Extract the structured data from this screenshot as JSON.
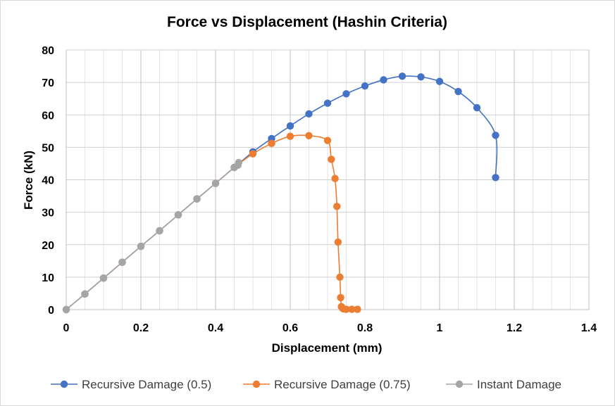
{
  "chart_data": {
    "type": "scatter",
    "title": "Force vs Displacement (Hashin Criteria)",
    "xlabel": "Displacement (mm)",
    "ylabel": "Force (kN)",
    "xlim": [
      0,
      1.4
    ],
    "ylim": [
      0,
      80
    ],
    "xticks": [
      "0",
      "0.2",
      "0.4",
      "0.6",
      "0.8",
      "1",
      "1.2",
      "1.4"
    ],
    "yticks": [
      "0",
      "10",
      "20",
      "30",
      "40",
      "50",
      "60",
      "70",
      "80"
    ],
    "grid": true,
    "legend_position": "bottom",
    "series": [
      {
        "name": "Recursive Damage (0.5)",
        "color": "#4472c4",
        "x": [
          0,
          0.05,
          0.1,
          0.15,
          0.2,
          0.25,
          0.3,
          0.35,
          0.4,
          0.45,
          0.5,
          0.55,
          0.6,
          0.65,
          0.7,
          0.75,
          0.8,
          0.85,
          0.9,
          0.95,
          1.0,
          1.05,
          1.1,
          1.15,
          1.15
        ],
        "y": [
          0,
          4.8,
          9.7,
          14.6,
          19.5,
          24.3,
          29.2,
          34.1,
          38.9,
          43.8,
          48.6,
          52.7,
          56.6,
          60.3,
          63.6,
          66.5,
          68.9,
          70.8,
          71.9,
          71.7,
          70.3,
          67.2,
          62.2,
          53.7,
          40.7
        ]
      },
      {
        "name": "Recursive Damage (0.75)",
        "color": "#ed7d31",
        "x": [
          0,
          0.05,
          0.1,
          0.15,
          0.2,
          0.25,
          0.3,
          0.35,
          0.4,
          0.45,
          0.5,
          0.55,
          0.6,
          0.65,
          0.7,
          0.71,
          0.72,
          0.725,
          0.728,
          0.733,
          0.735,
          0.737,
          0.74,
          0.743,
          0.75,
          0.765,
          0.78
        ],
        "y": [
          0,
          4.8,
          9.7,
          14.6,
          19.5,
          24.3,
          29.2,
          34.1,
          38.9,
          43.8,
          48.0,
          51.2,
          53.4,
          53.6,
          52.1,
          46.3,
          40.4,
          31.8,
          20.8,
          10.0,
          3.7,
          0.9,
          0.4,
          0.2,
          0.1,
          0.1,
          0.1
        ]
      },
      {
        "name": "Instant Damage",
        "color": "#a5a5a5",
        "x": [
          0,
          0.05,
          0.1,
          0.15,
          0.2,
          0.25,
          0.3,
          0.35,
          0.4,
          0.45,
          0.46,
          0.462
        ],
        "y": [
          0,
          4.8,
          9.7,
          14.6,
          19.5,
          24.3,
          29.2,
          34.1,
          38.9,
          43.8,
          44.5,
          45.3
        ]
      }
    ]
  }
}
